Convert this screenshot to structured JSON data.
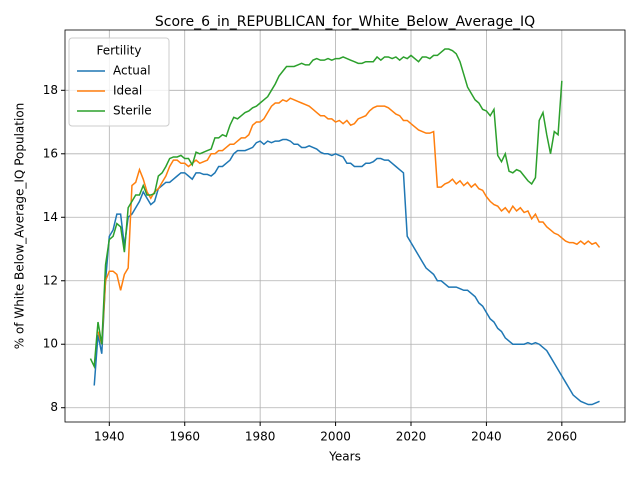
{
  "chart_data": {
    "type": "line",
    "title": "Score_6_in_REPUBLICAN_for_White_Below_Average_IQ",
    "xlabel": "Years",
    "ylabel": "% of White Below_Average_IQ Population",
    "legend_title": "Fertility",
    "legend": "upper left",
    "grid": true,
    "xlim": [
      1928.25,
      2076.75
    ],
    "ylim": [
      7.55,
      19.9
    ],
    "xticks": [
      1940,
      1960,
      1980,
      2000,
      2020,
      2040,
      2060
    ],
    "yticks": [
      8,
      10,
      12,
      14,
      16,
      18
    ],
    "x": [
      1935,
      1936,
      1937,
      1938,
      1939,
      1940,
      1941,
      1942,
      1943,
      1944,
      1945,
      1946,
      1947,
      1948,
      1949,
      1950,
      1951,
      1952,
      1953,
      1954,
      1955,
      1956,
      1957,
      1958,
      1959,
      1960,
      1961,
      1962,
      1963,
      1964,
      1965,
      1966,
      1967,
      1968,
      1969,
      1970,
      1971,
      1972,
      1973,
      1974,
      1975,
      1976,
      1977,
      1978,
      1979,
      1980,
      1981,
      1982,
      1983,
      1984,
      1985,
      1986,
      1987,
      1988,
      1989,
      1990,
      1991,
      1992,
      1993,
      1994,
      1995,
      1996,
      1997,
      1998,
      1999,
      2000,
      2001,
      2002,
      2003,
      2004,
      2005,
      2006,
      2007,
      2008,
      2009,
      2010,
      2011,
      2012,
      2013,
      2014,
      2015,
      2016,
      2017,
      2018,
      2019,
      2020,
      2021,
      2022,
      2023,
      2024,
      2025,
      2026,
      2027,
      2028,
      2029,
      2030,
      2031,
      2032,
      2033,
      2034,
      2035,
      2036,
      2037,
      2038,
      2039,
      2040,
      2041,
      2042,
      2043,
      2044,
      2045,
      2046,
      2047,
      2048,
      2049,
      2050,
      2051,
      2052,
      2053,
      2054,
      2055,
      2056,
      2057,
      2058,
      2059,
      2060,
      2061,
      2062,
      2063,
      2064,
      2065,
      2066,
      2067,
      2068,
      2069,
      2070
    ],
    "series": [
      {
        "name": "Actual",
        "color": "#1f77b4",
        "values": [
          null,
          8.7,
          10.3,
          9.7,
          12.0,
          13.4,
          13.6,
          14.1,
          14.1,
          13.1,
          14.0,
          14.1,
          14.3,
          14.5,
          14.8,
          14.6,
          14.4,
          14.5,
          14.9,
          15.0,
          15.1,
          15.1,
          15.2,
          15.3,
          15.4,
          15.4,
          15.3,
          15.2,
          15.4,
          15.4,
          15.35,
          15.35,
          15.3,
          15.4,
          15.6,
          15.6,
          15.7,
          15.8,
          16.0,
          16.1,
          16.1,
          16.1,
          16.15,
          16.2,
          16.35,
          16.4,
          16.3,
          16.4,
          16.35,
          16.4,
          16.4,
          16.45,
          16.45,
          16.4,
          16.3,
          16.3,
          16.2,
          16.2,
          16.25,
          16.2,
          16.15,
          16.05,
          16.0,
          16.0,
          15.95,
          16.0,
          15.95,
          15.9,
          15.7,
          15.7,
          15.6,
          15.6,
          15.6,
          15.7,
          15.7,
          15.75,
          15.85,
          15.85,
          15.8,
          15.8,
          15.7,
          15.6,
          15.5,
          15.4,
          13.4,
          13.2,
          13.0,
          12.8,
          12.6,
          12.4,
          12.3,
          12.2,
          12.0,
          12.0,
          11.9,
          11.8,
          11.8,
          11.8,
          11.75,
          11.7,
          11.7,
          11.6,
          11.5,
          11.3,
          11.2,
          11.0,
          10.8,
          10.7,
          10.5,
          10.4,
          10.2,
          10.1,
          10.0,
          10.0,
          10.0,
          10.0,
          10.05,
          10.0,
          10.05,
          10.0,
          9.9,
          9.8,
          9.6,
          9.4,
          9.2,
          9.0,
          8.8,
          8.6,
          8.4,
          8.3,
          8.2,
          8.15,
          8.1,
          8.1,
          8.15,
          8.2
        ]
      },
      {
        "name": "Ideal",
        "color": "#ff7f0e",
        "values": [
          null,
          null,
          10.4,
          10.0,
          12.0,
          12.3,
          12.3,
          12.2,
          11.7,
          12.2,
          12.4,
          15.0,
          15.1,
          15.5,
          15.2,
          14.8,
          14.6,
          14.8,
          14.9,
          15.1,
          15.3,
          15.6,
          15.8,
          15.8,
          15.7,
          15.7,
          15.6,
          15.7,
          15.8,
          15.7,
          15.75,
          15.8,
          16.0,
          16.0,
          16.1,
          16.1,
          16.2,
          16.3,
          16.3,
          16.4,
          16.5,
          16.5,
          16.6,
          16.9,
          17.0,
          17.0,
          17.1,
          17.3,
          17.5,
          17.6,
          17.6,
          17.7,
          17.65,
          17.75,
          17.7,
          17.65,
          17.6,
          17.55,
          17.5,
          17.4,
          17.3,
          17.2,
          17.2,
          17.1,
          17.1,
          17.0,
          17.05,
          16.95,
          17.05,
          16.9,
          16.95,
          17.1,
          17.15,
          17.2,
          17.35,
          17.45,
          17.5,
          17.5,
          17.5,
          17.45,
          17.35,
          17.25,
          17.2,
          17.05,
          17.05,
          16.95,
          16.85,
          16.75,
          16.7,
          16.65,
          16.65,
          16.7,
          14.95,
          14.95,
          15.05,
          15.1,
          15.2,
          15.05,
          15.15,
          15.0,
          15.1,
          14.95,
          15.05,
          14.9,
          14.85,
          14.65,
          14.5,
          14.4,
          14.35,
          14.2,
          14.3,
          14.15,
          14.35,
          14.2,
          14.3,
          14.15,
          14.2,
          13.95,
          14.1,
          13.85,
          13.85,
          13.7,
          13.6,
          13.5,
          13.45,
          13.35,
          13.25,
          13.2,
          13.2,
          13.15,
          13.25,
          13.15,
          13.25,
          13.15,
          13.2,
          13.05
        ]
      },
      {
        "name": "Sterile",
        "color": "#2ca02c",
        "values": [
          9.55,
          9.3,
          10.7,
          10.0,
          12.5,
          13.3,
          13.4,
          13.8,
          13.7,
          12.9,
          14.3,
          14.5,
          14.7,
          14.7,
          15.0,
          14.7,
          14.7,
          14.75,
          15.3,
          15.4,
          15.6,
          15.85,
          15.9,
          15.9,
          15.95,
          15.85,
          15.85,
          15.65,
          16.05,
          16.0,
          16.05,
          16.1,
          16.15,
          16.5,
          16.5,
          16.6,
          16.55,
          16.9,
          17.15,
          17.1,
          17.2,
          17.3,
          17.35,
          17.45,
          17.5,
          17.6,
          17.7,
          17.8,
          18.0,
          18.2,
          18.45,
          18.6,
          18.75,
          18.75,
          18.75,
          18.8,
          18.85,
          18.8,
          18.8,
          18.95,
          19.0,
          18.95,
          18.95,
          19.0,
          18.95,
          19.0,
          19.0,
          19.05,
          19.0,
          18.95,
          18.9,
          18.85,
          18.85,
          18.9,
          18.9,
          18.9,
          19.05,
          18.95,
          19.05,
          19.05,
          19.0,
          19.05,
          18.95,
          19.05,
          19.0,
          19.1,
          19.0,
          18.9,
          19.05,
          19.05,
          19.0,
          19.1,
          19.1,
          19.2,
          19.3,
          19.3,
          19.25,
          19.15,
          18.9,
          18.5,
          18.1,
          17.9,
          17.7,
          17.6,
          17.4,
          17.35,
          17.2,
          17.4,
          15.95,
          15.75,
          16.0,
          15.45,
          15.4,
          15.5,
          15.45,
          15.3,
          15.15,
          15.05,
          15.25,
          17.05,
          17.3,
          16.6,
          16.0,
          16.7,
          16.6,
          18.3,
          null,
          null,
          null,
          null,
          null,
          null,
          null,
          null,
          null,
          null
        ]
      }
    ]
  }
}
